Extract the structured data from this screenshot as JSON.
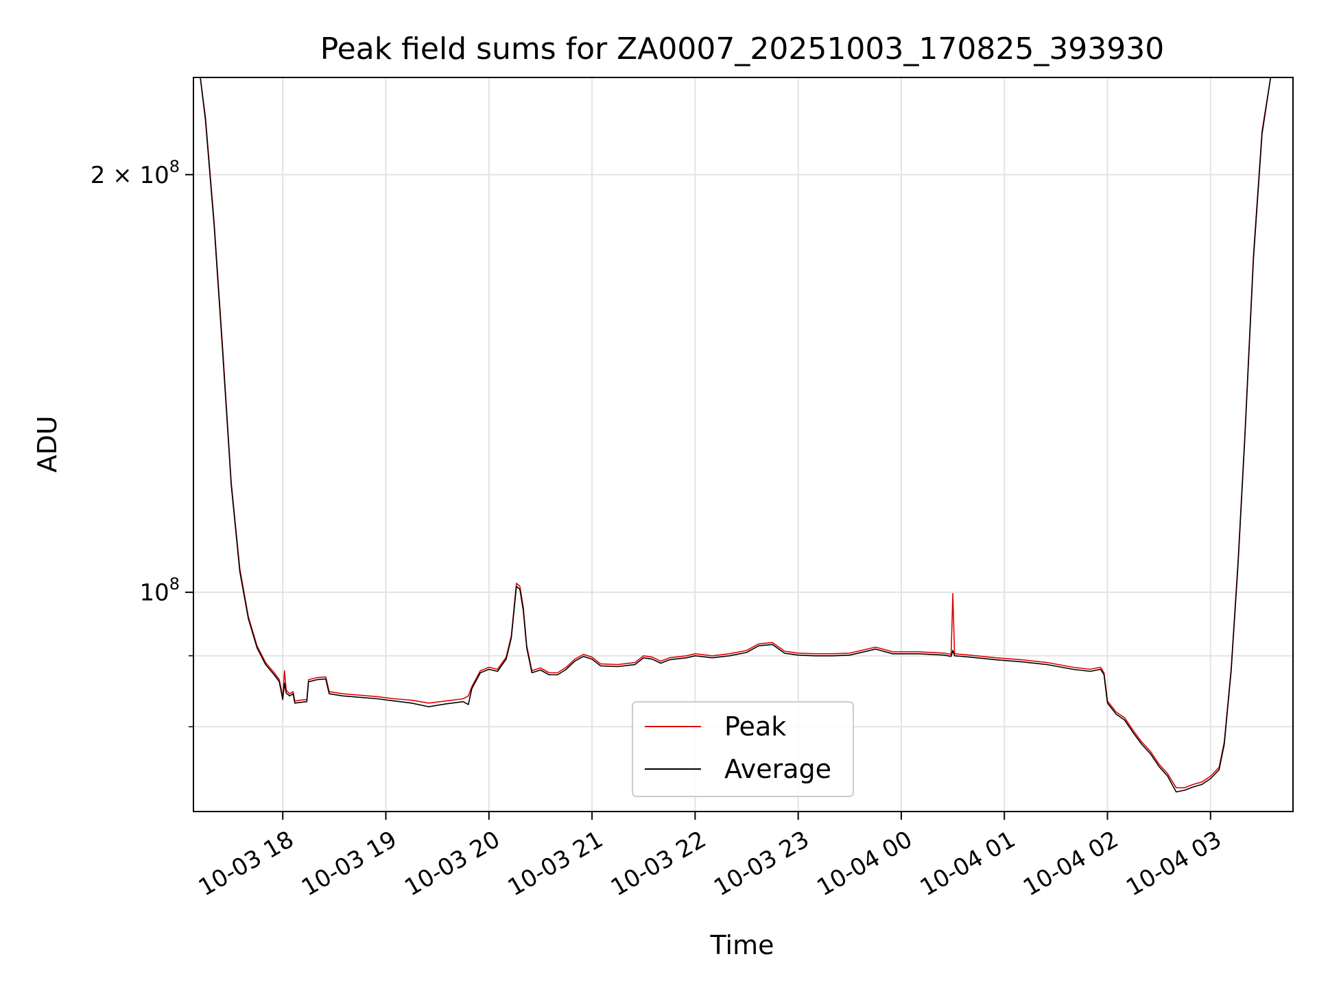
{
  "chart_data": {
    "type": "line",
    "title": "Peak field sums for ZA0007_20251003_170825_393930",
    "xlabel": "Time",
    "ylabel": "ADU",
    "y_scale": "log",
    "grid": true,
    "legend_position": "lower-center",
    "xlim": [
      "2025-10-03 17:08",
      "2025-10-04 03:48"
    ],
    "ylim": [
      69500000,
      235000000
    ],
    "x_ticks": [
      {
        "value": "2025-10-03 18:00",
        "label": "10-03 18"
      },
      {
        "value": "2025-10-03 19:00",
        "label": "10-03 19"
      },
      {
        "value": "2025-10-03 20:00",
        "label": "10-03 20"
      },
      {
        "value": "2025-10-03 21:00",
        "label": "10-03 21"
      },
      {
        "value": "2025-10-03 22:00",
        "label": "10-03 22"
      },
      {
        "value": "2025-10-03 23:00",
        "label": "10-03 23"
      },
      {
        "value": "2025-10-04 00:00",
        "label": "10-04 00"
      },
      {
        "value": "2025-10-04 01:00",
        "label": "10-04 01"
      },
      {
        "value": "2025-10-04 02:00",
        "label": "10-04 02"
      },
      {
        "value": "2025-10-04 03:00",
        "label": "10-04 03"
      }
    ],
    "y_ticks": [
      {
        "value": 200000000,
        "base": "2 × 10",
        "exp": "8"
      },
      {
        "value": 100000000,
        "base": "10",
        "exp": "8"
      }
    ],
    "y_minor_gridlines": [
      80000000,
      90000000
    ],
    "series": [
      {
        "name": "Peak",
        "color": "#e00000",
        "points": [
          [
            "2025-10-03 17:08",
            235000000
          ],
          [
            "2025-10-03 17:12",
            235000000
          ],
          [
            "2025-10-03 17:15",
            220000000
          ],
          [
            "2025-10-03 17:20",
            185000000
          ],
          [
            "2025-10-03 17:25",
            150000000
          ],
          [
            "2025-10-03 17:30",
            120000000
          ],
          [
            "2025-10-03 17:35",
            104000000
          ],
          [
            "2025-10-03 17:40",
            96000000
          ],
          [
            "2025-10-03 17:45",
            91500000
          ],
          [
            "2025-10-03 17:50",
            89000000
          ],
          [
            "2025-10-03 17:55",
            87500000
          ],
          [
            "2025-10-03 17:58",
            86500000
          ],
          [
            "2025-10-03 18:00",
            84000000
          ],
          [
            "2025-10-03 18:01",
            87800000
          ],
          [
            "2025-10-03 18:02",
            85000000
          ],
          [
            "2025-10-03 18:04",
            84500000
          ],
          [
            "2025-10-03 18:06",
            84800000
          ],
          [
            "2025-10-03 18:07",
            83500000
          ],
          [
            "2025-10-03 18:10",
            83600000
          ],
          [
            "2025-10-03 18:14",
            83700000
          ],
          [
            "2025-10-03 18:15",
            86500000
          ],
          [
            "2025-10-03 18:20",
            86800000
          ],
          [
            "2025-10-03 18:25",
            86900000
          ],
          [
            "2025-10-03 18:27",
            84800000
          ],
          [
            "2025-10-03 18:35",
            84500000
          ],
          [
            "2025-10-03 18:45",
            84300000
          ],
          [
            "2025-10-03 18:55",
            84100000
          ],
          [
            "2025-10-03 19:05",
            83800000
          ],
          [
            "2025-10-03 19:15",
            83600000
          ],
          [
            "2025-10-03 19:25",
            83200000
          ],
          [
            "2025-10-03 19:35",
            83500000
          ],
          [
            "2025-10-03 19:45",
            83800000
          ],
          [
            "2025-10-03 19:48",
            84200000
          ],
          [
            "2025-10-03 19:50",
            85500000
          ],
          [
            "2025-10-03 19:55",
            87800000
          ],
          [
            "2025-10-03 20:00",
            88300000
          ],
          [
            "2025-10-03 20:05",
            88000000
          ],
          [
            "2025-10-03 20:10",
            89800000
          ],
          [
            "2025-10-03 20:13",
            93000000
          ],
          [
            "2025-10-03 20:16",
            101500000
          ],
          [
            "2025-10-03 20:18",
            101000000
          ],
          [
            "2025-10-03 20:20",
            97500000
          ],
          [
            "2025-10-03 20:22",
            91500000
          ],
          [
            "2025-10-03 20:25",
            87800000
          ],
          [
            "2025-10-03 20:30",
            88200000
          ],
          [
            "2025-10-03 20:35",
            87500000
          ],
          [
            "2025-10-03 20:40",
            87500000
          ],
          [
            "2025-10-03 20:45",
            88300000
          ],
          [
            "2025-10-03 20:50",
            89500000
          ],
          [
            "2025-10-03 20:55",
            90200000
          ],
          [
            "2025-10-03 21:00",
            89800000
          ],
          [
            "2025-10-03 21:05",
            88800000
          ],
          [
            "2025-10-03 21:15",
            88700000
          ],
          [
            "2025-10-03 21:25",
            89000000
          ],
          [
            "2025-10-03 21:30",
            90000000
          ],
          [
            "2025-10-03 21:35",
            89800000
          ],
          [
            "2025-10-03 21:40",
            89200000
          ],
          [
            "2025-10-03 21:45",
            89700000
          ],
          [
            "2025-10-03 21:55",
            90000000
          ],
          [
            "2025-10-03 22:00",
            90300000
          ],
          [
            "2025-10-03 22:10",
            90000000
          ],
          [
            "2025-10-03 22:20",
            90300000
          ],
          [
            "2025-10-03 22:30",
            90800000
          ],
          [
            "2025-10-03 22:37",
            91800000
          ],
          [
            "2025-10-03 22:45",
            92000000
          ],
          [
            "2025-10-03 22:52",
            90700000
          ],
          [
            "2025-10-03 23:00",
            90400000
          ],
          [
            "2025-10-03 23:10",
            90300000
          ],
          [
            "2025-10-03 23:20",
            90300000
          ],
          [
            "2025-10-03 23:30",
            90400000
          ],
          [
            "2025-10-03 23:45",
            91300000
          ],
          [
            "2025-10-03 23:55",
            90600000
          ],
          [
            "2025-10-04 00:10",
            90600000
          ],
          [
            "2025-10-04 00:25",
            90400000
          ],
          [
            "2025-10-04 00:29",
            90200000
          ],
          [
            "2025-10-04 00:30",
            99800000
          ],
          [
            "2025-10-04 00:31",
            90300000
          ],
          [
            "2025-10-04 00:40",
            90100000
          ],
          [
            "2025-10-04 00:55",
            89700000
          ],
          [
            "2025-10-04 01:10",
            89400000
          ],
          [
            "2025-10-04 01:25",
            89000000
          ],
          [
            "2025-10-04 01:40",
            88300000
          ],
          [
            "2025-10-04 01:50",
            88000000
          ],
          [
            "2025-10-04 01:56",
            88300000
          ],
          [
            "2025-10-04 01:58",
            87500000
          ],
          [
            "2025-10-04 02:00",
            83500000
          ],
          [
            "2025-10-04 02:05",
            82000000
          ],
          [
            "2025-10-04 02:10",
            81200000
          ],
          [
            "2025-10-04 02:15",
            79500000
          ],
          [
            "2025-10-04 02:20",
            78000000
          ],
          [
            "2025-10-04 02:25",
            76800000
          ],
          [
            "2025-10-04 02:30",
            75200000
          ],
          [
            "2025-10-04 02:35",
            74000000
          ],
          [
            "2025-10-04 02:40",
            72300000
          ],
          [
            "2025-10-04 02:45",
            72300000
          ],
          [
            "2025-10-04 02:50",
            72700000
          ],
          [
            "2025-10-04 02:55",
            73000000
          ],
          [
            "2025-10-04 03:00",
            73700000
          ],
          [
            "2025-10-04 03:05",
            74800000
          ],
          [
            "2025-10-04 03:08",
            78000000
          ],
          [
            "2025-10-04 03:12",
            88000000
          ],
          [
            "2025-10-04 03:16",
            105000000
          ],
          [
            "2025-10-04 03:20",
            130000000
          ],
          [
            "2025-10-04 03:25",
            175000000
          ],
          [
            "2025-10-04 03:30",
            215000000
          ],
          [
            "2025-10-04 03:35",
            235000000
          ],
          [
            "2025-10-04 03:48",
            235000000
          ]
        ]
      },
      {
        "name": "Average",
        "color": "#000000",
        "points": [
          [
            "2025-10-03 17:08",
            235000000
          ],
          [
            "2025-10-03 17:12",
            235000000
          ],
          [
            "2025-10-03 17:15",
            219000000
          ],
          [
            "2025-10-03 17:20",
            184000000
          ],
          [
            "2025-10-03 17:25",
            149000000
          ],
          [
            "2025-10-03 17:30",
            119500000
          ],
          [
            "2025-10-03 17:35",
            103500000
          ],
          [
            "2025-10-03 17:40",
            95700000
          ],
          [
            "2025-10-03 17:45",
            91200000
          ],
          [
            "2025-10-03 17:50",
            88700000
          ],
          [
            "2025-10-03 17:55",
            87200000
          ],
          [
            "2025-10-03 17:58",
            86200000
          ],
          [
            "2025-10-03 18:00",
            83700000
          ],
          [
            "2025-10-03 18:01",
            86000000
          ],
          [
            "2025-10-03 18:02",
            84600000
          ],
          [
            "2025-10-03 18:04",
            84200000
          ],
          [
            "2025-10-03 18:06",
            84500000
          ],
          [
            "2025-10-03 18:07",
            83200000
          ],
          [
            "2025-10-03 18:10",
            83300000
          ],
          [
            "2025-10-03 18:14",
            83400000
          ],
          [
            "2025-10-03 18:15",
            86200000
          ],
          [
            "2025-10-03 18:20",
            86500000
          ],
          [
            "2025-10-03 18:25",
            86600000
          ],
          [
            "2025-10-03 18:27",
            84500000
          ],
          [
            "2025-10-03 18:35",
            84200000
          ],
          [
            "2025-10-03 18:45",
            84000000
          ],
          [
            "2025-10-03 18:55",
            83800000
          ],
          [
            "2025-10-03 19:05",
            83500000
          ],
          [
            "2025-10-03 19:15",
            83200000
          ],
          [
            "2025-10-03 19:25",
            82700000
          ],
          [
            "2025-10-03 19:35",
            83100000
          ],
          [
            "2025-10-03 19:45",
            83400000
          ],
          [
            "2025-10-03 19:48",
            83000000
          ],
          [
            "2025-10-03 19:50",
            85200000
          ],
          [
            "2025-10-03 19:55",
            87500000
          ],
          [
            "2025-10-03 20:00",
            88000000
          ],
          [
            "2025-10-03 20:05",
            87700000
          ],
          [
            "2025-10-03 20:10",
            89500000
          ],
          [
            "2025-10-03 20:13",
            92700000
          ],
          [
            "2025-10-03 20:16",
            101000000
          ],
          [
            "2025-10-03 20:18",
            100500000
          ],
          [
            "2025-10-03 20:20",
            97000000
          ],
          [
            "2025-10-03 20:22",
            91200000
          ],
          [
            "2025-10-03 20:25",
            87500000
          ],
          [
            "2025-10-03 20:30",
            87900000
          ],
          [
            "2025-10-03 20:35",
            87200000
          ],
          [
            "2025-10-03 20:40",
            87200000
          ],
          [
            "2025-10-03 20:45",
            88000000
          ],
          [
            "2025-10-03 20:50",
            89200000
          ],
          [
            "2025-10-03 20:55",
            89900000
          ],
          [
            "2025-10-03 21:00",
            89500000
          ],
          [
            "2025-10-03 21:05",
            88500000
          ],
          [
            "2025-10-03 21:15",
            88400000
          ],
          [
            "2025-10-03 21:25",
            88700000
          ],
          [
            "2025-10-03 21:30",
            89700000
          ],
          [
            "2025-10-03 21:35",
            89500000
          ],
          [
            "2025-10-03 21:40",
            88900000
          ],
          [
            "2025-10-03 21:45",
            89400000
          ],
          [
            "2025-10-03 21:55",
            89700000
          ],
          [
            "2025-10-03 22:00",
            90000000
          ],
          [
            "2025-10-03 22:10",
            89700000
          ],
          [
            "2025-10-03 22:20",
            90000000
          ],
          [
            "2025-10-03 22:30",
            90500000
          ],
          [
            "2025-10-03 22:37",
            91500000
          ],
          [
            "2025-10-03 22:45",
            91700000
          ],
          [
            "2025-10-03 22:52",
            90400000
          ],
          [
            "2025-10-03 23:00",
            90100000
          ],
          [
            "2025-10-03 23:10",
            90000000
          ],
          [
            "2025-10-03 23:20",
            90000000
          ],
          [
            "2025-10-03 23:30",
            90100000
          ],
          [
            "2025-10-03 23:45",
            91000000
          ],
          [
            "2025-10-03 23:55",
            90300000
          ],
          [
            "2025-10-04 00:10",
            90300000
          ],
          [
            "2025-10-04 00:25",
            90100000
          ],
          [
            "2025-10-04 00:29",
            89900000
          ],
          [
            "2025-10-04 00:30",
            90800000
          ],
          [
            "2025-10-04 00:31",
            90000000
          ],
          [
            "2025-10-04 00:40",
            89800000
          ],
          [
            "2025-10-04 00:55",
            89400000
          ],
          [
            "2025-10-04 01:10",
            89100000
          ],
          [
            "2025-10-04 01:25",
            88700000
          ],
          [
            "2025-10-04 01:40",
            88000000
          ],
          [
            "2025-10-04 01:50",
            87700000
          ],
          [
            "2025-10-04 01:56",
            88000000
          ],
          [
            "2025-10-04 01:58",
            87200000
          ],
          [
            "2025-10-04 02:00",
            83200000
          ],
          [
            "2025-10-04 02:05",
            81700000
          ],
          [
            "2025-10-04 02:10",
            80900000
          ],
          [
            "2025-10-04 02:15",
            79200000
          ],
          [
            "2025-10-04 02:20",
            77700000
          ],
          [
            "2025-10-04 02:25",
            76500000
          ],
          [
            "2025-10-04 02:30",
            74900000
          ],
          [
            "2025-10-04 02:35",
            73700000
          ],
          [
            "2025-10-04 02:40",
            71800000
          ],
          [
            "2025-10-04 02:45",
            72000000
          ],
          [
            "2025-10-04 02:50",
            72400000
          ],
          [
            "2025-10-04 02:55",
            72700000
          ],
          [
            "2025-10-04 03:00",
            73400000
          ],
          [
            "2025-10-04 03:05",
            74500000
          ],
          [
            "2025-10-04 03:08",
            77700000
          ],
          [
            "2025-10-04 03:12",
            87700000
          ],
          [
            "2025-10-04 03:16",
            104500000
          ],
          [
            "2025-10-04 03:20",
            129500000
          ],
          [
            "2025-10-04 03:25",
            174000000
          ],
          [
            "2025-10-04 03:30",
            214000000
          ],
          [
            "2025-10-04 03:35",
            235000000
          ],
          [
            "2025-10-04 03:48",
            235000000
          ]
        ]
      }
    ]
  }
}
